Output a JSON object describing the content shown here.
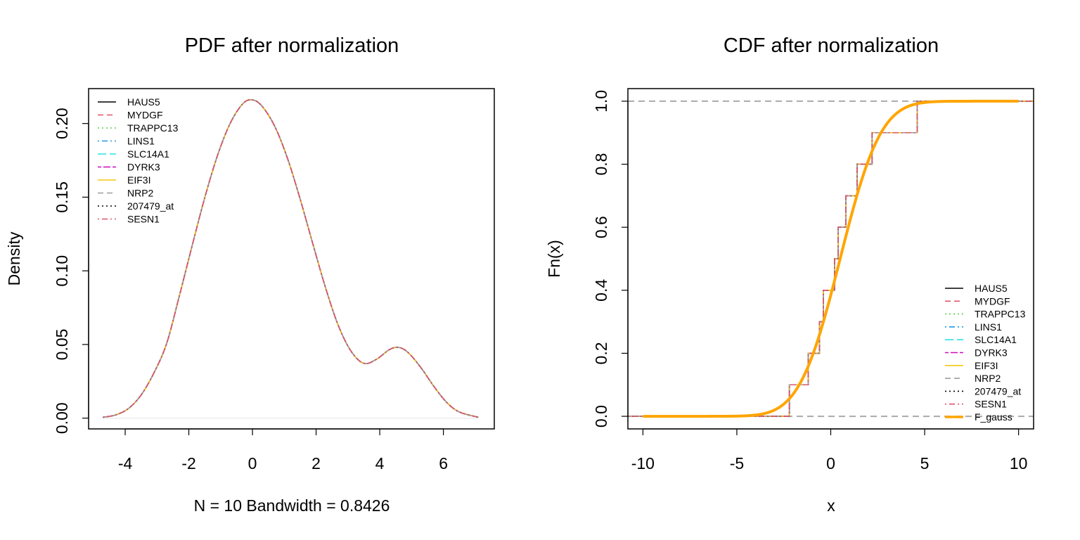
{
  "colors": {
    "HAUS5": "#000000",
    "MYDGF": "#df536b",
    "TRAPPC13": "#61d04f",
    "LINS1": "#2297e6",
    "SLC14A1": "#28e2e5",
    "DYRK3": "#cd0bbc",
    "EIF3I": "#f5c710",
    "NRP2": "#9e9e9e",
    "207479_at": "#000000",
    "SESN1": "#df536b",
    "F_gauss": "#ffa500",
    "reference": "#aaaaaa"
  },
  "chart_data": [
    {
      "type": "line",
      "title": "PDF after normalization",
      "xlabel": "N = 10   Bandwidth = 0.8426",
      "ylabel": "Density",
      "xlim": [
        -5.15,
        7.6
      ],
      "ylim": [
        -0.0073,
        0.2237
      ],
      "x_ticks": [
        -4,
        -2,
        0,
        2,
        4,
        6
      ],
      "x_tick_labels": [
        "-4",
        "-2",
        "0",
        "2",
        "4",
        "6"
      ],
      "y_ticks": [
        0.0,
        0.05,
        0.1,
        0.15,
        0.2
      ],
      "y_tick_labels": [
        "0.00",
        "0.05",
        "0.10",
        "0.15",
        "0.20"
      ],
      "grid": false,
      "zero_line": true,
      "legend_position": "top-left",
      "series_x": [
        -4.7,
        -4.3,
        -3.9,
        -3.5,
        -3.1,
        -2.7,
        -2.3,
        -1.9,
        -1.5,
        -1.1,
        -0.7,
        -0.3,
        0.0,
        0.3,
        0.7,
        1.1,
        1.5,
        1.9,
        2.3,
        2.7,
        3.1,
        3.5,
        3.9,
        4.3,
        4.6,
        4.9,
        5.3,
        5.7,
        6.1,
        6.5,
        7.1
      ],
      "series_y": [
        0.0006,
        0.0022,
        0.0065,
        0.0157,
        0.0306,
        0.0505,
        0.0828,
        0.1167,
        0.1496,
        0.1782,
        0.2001,
        0.2135,
        0.216,
        0.2118,
        0.1981,
        0.1764,
        0.1486,
        0.1181,
        0.0883,
        0.0628,
        0.0454,
        0.0372,
        0.04,
        0.0465,
        0.048,
        0.0444,
        0.0341,
        0.0216,
        0.0108,
        0.0042,
        0.0006
      ],
      "series": [
        {
          "name": "HAUS5",
          "lty": "solid"
        },
        {
          "name": "MYDGF",
          "lty": "dashed"
        },
        {
          "name": "TRAPPC13",
          "lty": "dotted"
        },
        {
          "name": "LINS1",
          "lty": "dotdash"
        },
        {
          "name": "SLC14A1",
          "lty": "longdash"
        },
        {
          "name": "DYRK3",
          "lty": "twodash"
        },
        {
          "name": "EIF3I",
          "lty": "solid"
        },
        {
          "name": "NRP2",
          "lty": "dashed"
        },
        {
          "name": "207479_at",
          "lty": "dotted"
        },
        {
          "name": "SESN1",
          "lty": "dotdash"
        }
      ]
    },
    {
      "type": "line",
      "title": "CDF after normalization",
      "xlabel": "x",
      "ylabel": "Fn(x)",
      "xlim": [
        -10.8,
        10.8
      ],
      "ylim": [
        -0.04,
        1.04
      ],
      "x_ticks": [
        -10,
        -5,
        0,
        5,
        10
      ],
      "x_tick_labels": [
        "-10",
        "-5",
        "0",
        "5",
        "10"
      ],
      "y_ticks": [
        0.0,
        0.2,
        0.4,
        0.6,
        0.8,
        1.0
      ],
      "y_tick_labels": [
        "0.0",
        "0.2",
        "0.4",
        "0.6",
        "0.8",
        "1.0"
      ],
      "grid": false,
      "reference_lines": [
        0,
        1
      ],
      "legend_position": "bottom-right",
      "ecdf_points": [
        -2.2,
        -1.2,
        -0.6,
        -0.4,
        0.2,
        0.4,
        0.8,
        1.4,
        2.2,
        4.6
      ],
      "ecdf_range": [
        -10.8,
        10.8
      ],
      "gauss_mean": 0.5,
      "gauss_sd": 1.7,
      "gauss_range": [
        -10,
        10
      ],
      "series": [
        {
          "name": "HAUS5",
          "lty": "solid"
        },
        {
          "name": "MYDGF",
          "lty": "dashed"
        },
        {
          "name": "TRAPPC13",
          "lty": "dotted"
        },
        {
          "name": "LINS1",
          "lty": "dotdash"
        },
        {
          "name": "SLC14A1",
          "lty": "longdash"
        },
        {
          "name": "DYRK3",
          "lty": "twodash"
        },
        {
          "name": "EIF3I",
          "lty": "solid"
        },
        {
          "name": "NRP2",
          "lty": "dashed"
        },
        {
          "name": "207479_at",
          "lty": "dotted"
        },
        {
          "name": "SESN1",
          "lty": "dotdash"
        },
        {
          "name": "F_gauss",
          "lty": "solid"
        }
      ]
    }
  ]
}
